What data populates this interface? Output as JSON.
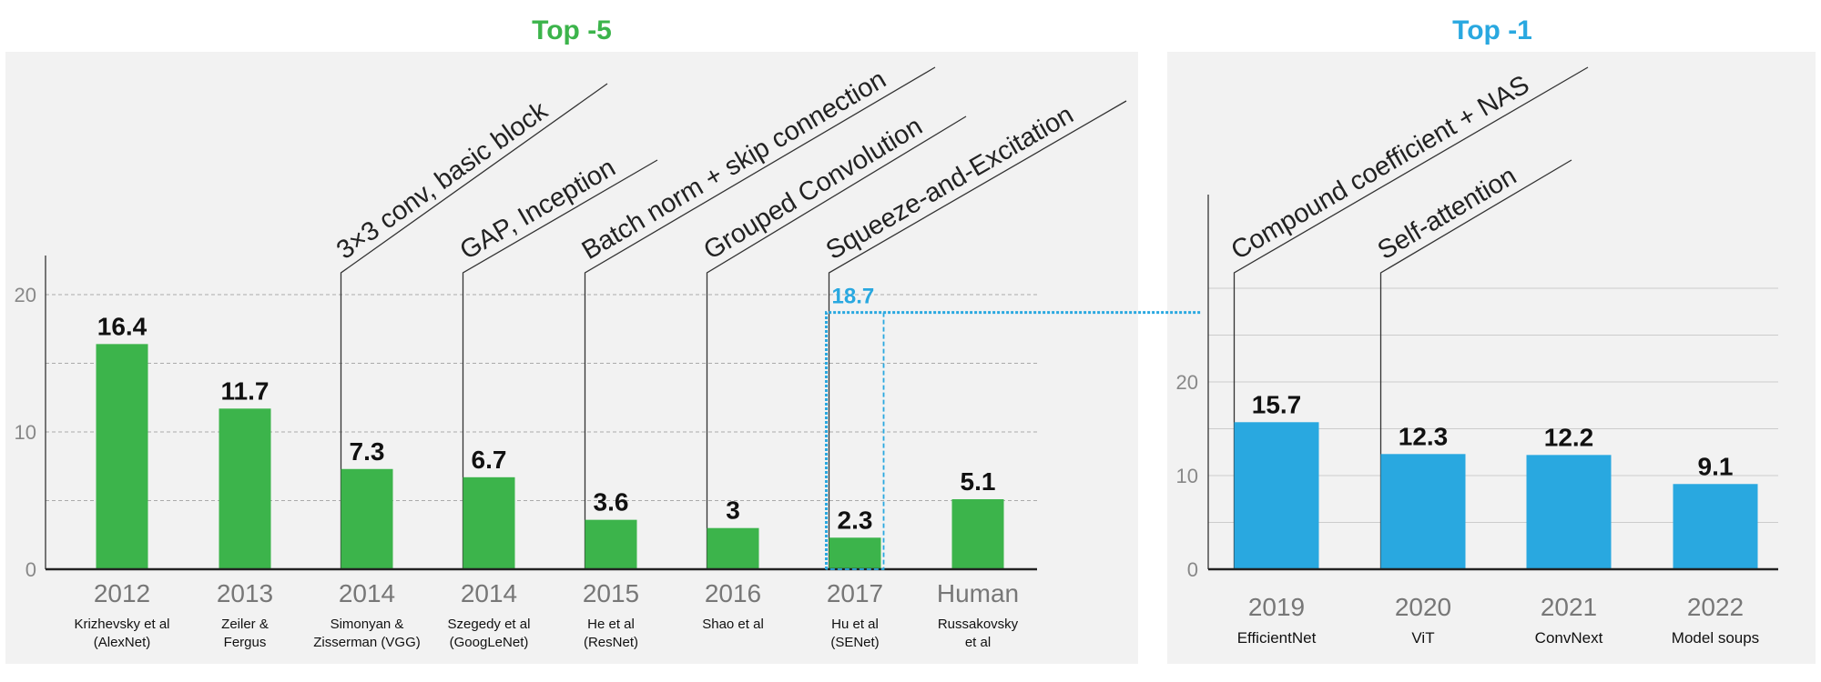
{
  "colors": {
    "green": "#3cb44b",
    "blue": "#29a8e0",
    "panel": "#f2f2f2"
  },
  "chart_data": [
    {
      "type": "bar",
      "title": "Top -5",
      "ylim": [
        0,
        22
      ],
      "yticks": [
        "0",
        "10",
        "20"
      ],
      "ytick_values": [
        0,
        10,
        20
      ],
      "grid_values": [
        5,
        10,
        15,
        20
      ],
      "categories": [
        "2012",
        "2013",
        "2014",
        "2014",
        "2015",
        "2016",
        "2017",
        "Human"
      ],
      "subtitles": [
        [
          "Krizhevsky et al",
          "(AlexNet)"
        ],
        [
          "Zeiler &",
          "Fergus"
        ],
        [
          "Simonyan &",
          "Zisserman (VGG)"
        ],
        [
          "Szegedy et al",
          "(GoogLeNet)"
        ],
        [
          "He et al",
          "(ResNet)"
        ],
        [
          "Shao et al",
          ""
        ],
        [
          "Hu et al",
          "(SENet)"
        ],
        [
          "Russakovsky",
          "et al"
        ]
      ],
      "values": [
        16.4,
        11.7,
        7.3,
        6.7,
        3.6,
        3,
        2.3,
        5.1
      ],
      "value_labels": [
        "16.4",
        "11.7",
        "7.3",
        "6.7",
        "3.6",
        "3",
        "2.3",
        "5.1"
      ],
      "annotations": [
        {
          "bar": 2,
          "text": "3×3 conv, basic block"
        },
        {
          "bar": 3,
          "text": "GAP, Inception"
        },
        {
          "bar": 4,
          "text": "Batch norm + skip connection"
        },
        {
          "bar": 5,
          "text": "Grouped Convolution"
        },
        {
          "bar": 6,
          "text": "Squeeze-and-Excitation"
        }
      ],
      "highlight": {
        "bar": 6,
        "value": 18.7,
        "label": "18.7"
      }
    },
    {
      "type": "bar",
      "title": "Top -1",
      "ylim": [
        0,
        30
      ],
      "yticks": [
        "0",
        "10",
        "20"
      ],
      "ytick_values": [
        0,
        10,
        20
      ],
      "grid_values": [
        5,
        10,
        15,
        20,
        25,
        30
      ],
      "categories": [
        "2019",
        "2020",
        "2021",
        "2022"
      ],
      "subtitles": [
        [
          "EfficientNet"
        ],
        [
          "ViT"
        ],
        [
          "ConvNext"
        ],
        [
          "Model soups"
        ]
      ],
      "values": [
        15.7,
        12.3,
        12.2,
        9.1
      ],
      "value_labels": [
        "15.7",
        "12.3",
        "12.2",
        "9.1"
      ],
      "annotations": [
        {
          "bar": 0,
          "text": "Compound coefficient + NAS"
        },
        {
          "bar": 1,
          "text": "Self-attention"
        }
      ]
    }
  ]
}
